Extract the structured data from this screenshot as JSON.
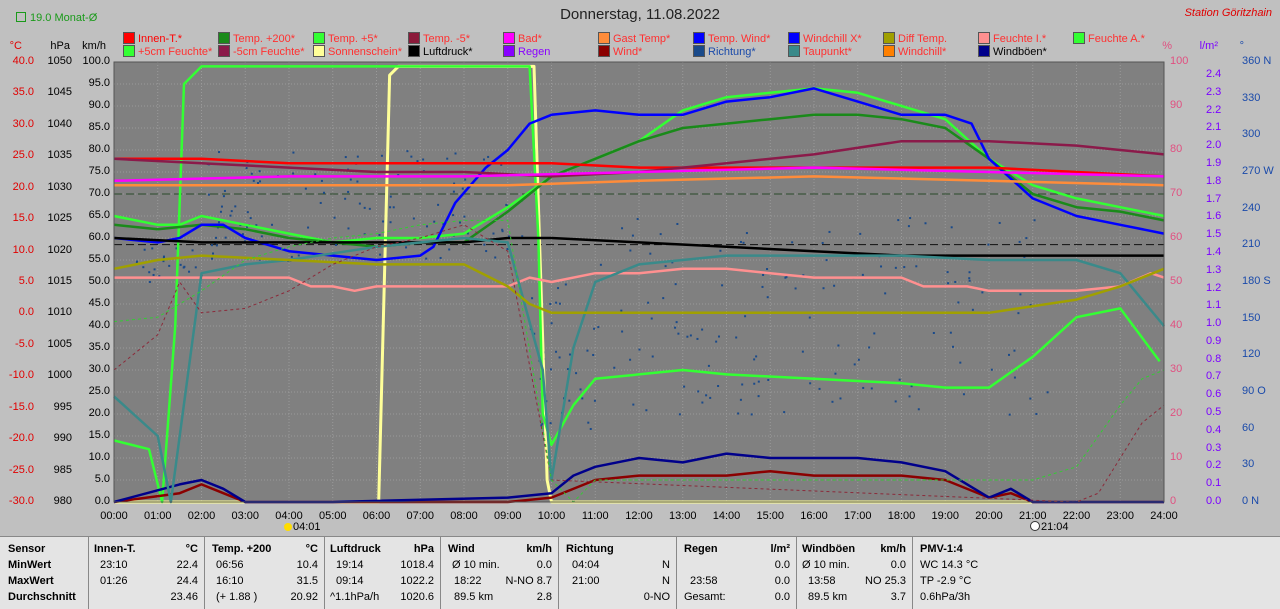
{
  "header": {
    "title": "Donnerstag, 11.08.2022",
    "station": "Station Göritzhain",
    "monat": "19.0 Monat-Ø"
  },
  "legend": [
    {
      "label": "Innen-T.*",
      "color": "#ff0000",
      "text_color": "#ff0000"
    },
    {
      "label": "Temp. +200*",
      "color": "#1a8a1a",
      "text_color": "#ff3030"
    },
    {
      "label": "Temp. +5*",
      "color": "#33ff33",
      "text_color": "#ff3030"
    },
    {
      "label": "Temp. -5*",
      "color": "#8b1a3a",
      "text_color": "#ff3030"
    },
    {
      "label": "Bad*",
      "color": "#ff00ff",
      "text_color": "#ff3030"
    },
    {
      "label": "Gast Temp*",
      "color": "#ff8c3a",
      "text_color": "#ff3030"
    },
    {
      "label": "Temp. Wind*",
      "color": "#0000ff",
      "text_color": "#ff3030"
    },
    {
      "label": "Windchill X*",
      "color": "#0000ff",
      "text_color": "#ff3030"
    },
    {
      "label": "Diff Temp.",
      "color": "#a0a000",
      "text_color": "#ff3030"
    },
    {
      "label": "Feuchte I.*",
      "color": "#ff9090",
      "text_color": "#ff3030"
    },
    {
      "label": "Feuchte A.*",
      "color": "#33ff33",
      "text_color": "#ff3030"
    },
    {
      "label": "+5cm Feuchte*",
      "color": "#33ff33",
      "text_color": "#ff3030"
    },
    {
      "label": "-5cm Feuchte*",
      "color": "#8b1a4a",
      "text_color": "#ff3030"
    },
    {
      "label": "Sonnenschein*",
      "color": "#ffff99",
      "text_color": "#ff3030"
    },
    {
      "label": "Luftdruck*",
      "color": "#000000",
      "text_color": "#000000"
    },
    {
      "label": "Regen",
      "color": "#8800ff",
      "text_color": "#8800ff"
    },
    {
      "label": "Wind*",
      "color": "#8b0000",
      "text_color": "#ff3030"
    },
    {
      "label": "Richtung*",
      "color": "#1a4a8a",
      "text_color": "#1a4aaa"
    },
    {
      "label": "Taupunkt*",
      "color": "#3a8a8a",
      "text_color": "#ff3030"
    },
    {
      "label": "Windchill*",
      "color": "#ff8000",
      "text_color": "#ff3030"
    },
    {
      "label": "Windböen*",
      "color": "#00008b",
      "text_color": "#000000"
    }
  ],
  "units": {
    "celsius": "°C",
    "hpa": "hPa",
    "kmh": "km/h",
    "percent": "%",
    "rain": "l/m²",
    "direction": "°"
  },
  "axes": {
    "temp": [
      "40.0",
      "35.0",
      "30.0",
      "25.0",
      "20.0",
      "15.0",
      "10.0",
      "5.0",
      "0.0",
      "-5.0",
      "-10.0",
      "-15.0",
      "-20.0",
      "-25.0",
      "-30.0"
    ],
    "hpa": [
      "1050",
      "1045",
      "1040",
      "1035",
      "1030",
      "1025",
      "1020",
      "1015",
      "1010",
      "1005",
      "1000",
      "995",
      "990",
      "985",
      "980"
    ],
    "kmh": [
      "100.0",
      "95.0",
      "90.0",
      "85.0",
      "80.0",
      "75.0",
      "70.0",
      "65.0",
      "60.0",
      "55.0",
      "50.0",
      "45.0",
      "40.0",
      "35.0",
      "30.0",
      "25.0",
      "20.0",
      "15.0",
      "10.0",
      "5.0",
      "0.0"
    ],
    "percent": [
      "100",
      "90",
      "80",
      "70",
      "60",
      "50",
      "40",
      "30",
      "20",
      "10",
      "0"
    ],
    "rain": [
      "2.4",
      "2.3",
      "2.2",
      "2.1",
      "2.0",
      "1.9",
      "1.8",
      "1.7",
      "1.6",
      "1.5",
      "1.4",
      "1.3",
      "1.2",
      "1.1",
      "1.0",
      "0.9",
      "0.8",
      "0.7",
      "0.6",
      "0.5",
      "0.4",
      "0.3",
      "0.2",
      "0.1",
      "0.0"
    ],
    "direction": [
      "360 N",
      "330",
      "300",
      "270 W",
      "240",
      "210",
      "180 S",
      "150",
      "120",
      "90 O",
      "60",
      "30",
      "0 N"
    ],
    "time": [
      "00:00",
      "01:00",
      "02:00",
      "03:00",
      "04:00",
      "05:00",
      "06:00",
      "07:00",
      "08:00",
      "09:00",
      "10:00",
      "11:00",
      "12:00",
      "13:00",
      "14:00",
      "15:00",
      "16:00",
      "17:00",
      "18:00",
      "19:00",
      "20:00",
      "21:00",
      "22:00",
      "23:00",
      "24:00"
    ]
  },
  "markers": {
    "sunrise": "04:01",
    "sunset": "21:04"
  },
  "chart_data": {
    "type": "line",
    "x_unit": "hour",
    "kmh_range": [
      0,
      100
    ],
    "series": [
      {
        "name": "Sonnenschein*",
        "color": "#ffff99",
        "axis": "kmh",
        "x": [
          0,
          6,
          6.05,
          6.3,
          6.5,
          9.6,
          9.9,
          10,
          24
        ],
        "y": [
          0,
          0,
          0,
          97,
          99,
          99,
          5,
          0,
          0
        ]
      },
      {
        "name": "+5cm Feuchte*",
        "color": "#33ff33",
        "axis": "kmh",
        "x": [
          0,
          0.8,
          1.1,
          1.4,
          1.6,
          2,
          9.5,
          9.7,
          9.8,
          10,
          10.5,
          11,
          13,
          14,
          16,
          18,
          19,
          20,
          21,
          22,
          23,
          23.9
        ],
        "y": [
          14,
          12,
          0,
          40,
          95,
          99,
          99,
          60,
          20,
          13,
          22,
          28,
          30,
          29,
          28,
          27,
          26,
          26,
          33,
          42,
          44,
          32
        ]
      },
      {
        "name": "Feuchte A.*",
        "color": "#33ff33",
        "axis": "kmh",
        "x": [
          0,
          1,
          1.5,
          2,
          3,
          4,
          5,
          6,
          7,
          8,
          9,
          10,
          11,
          12,
          13,
          14,
          15,
          16,
          17,
          18,
          19,
          20,
          21,
          22,
          23,
          24
        ],
        "y": [
          65,
          63,
          63,
          65,
          63,
          61,
          59,
          60,
          60,
          61,
          67,
          74,
          78,
          82,
          89,
          92,
          93,
          94,
          93,
          90,
          87,
          78,
          72,
          69,
          67,
          65
        ]
      },
      {
        "name": "Temp. +200*",
        "color": "#1a8a1a",
        "axis": "kmh",
        "x": [
          0,
          1,
          2,
          3,
          4,
          5,
          6,
          7,
          8,
          9,
          10,
          11,
          12,
          13,
          14,
          15,
          16,
          17,
          18,
          19,
          20,
          21,
          22,
          23,
          24
        ],
        "y": [
          63,
          62,
          63,
          62,
          60,
          59,
          58,
          59,
          59,
          66,
          74,
          78,
          82,
          85,
          86,
          87,
          88,
          88,
          87,
          85,
          78,
          70,
          67,
          66,
          64
        ]
      },
      {
        "name": "Temp. Wind*",
        "color": "#0000ff",
        "axis": "kmh",
        "x": [
          0,
          1,
          1.5,
          2,
          2.5,
          3,
          4,
          5,
          6,
          7,
          7.3,
          7.8,
          8.5,
          9,
          9.5,
          10,
          11,
          12,
          13,
          14,
          15,
          16,
          17,
          18,
          19,
          19.6,
          20,
          21,
          22,
          23,
          24
        ],
        "y": [
          60,
          59,
          60,
          63,
          63,
          60,
          57,
          56,
          55,
          56,
          58,
          68,
          76,
          80,
          86,
          88,
          89,
          88,
          88,
          91,
          92,
          94,
          91,
          88,
          88,
          86,
          78,
          69,
          65,
          63,
          61
        ]
      },
      {
        "name": "Innen-T.*",
        "color": "#ff0000",
        "axis": "kmh",
        "x": [
          0,
          2,
          4,
          6,
          8,
          10,
          12,
          14,
          16,
          18,
          20,
          22,
          24
        ],
        "y": [
          78,
          78,
          77,
          77,
          77,
          77,
          76,
          76,
          76,
          76,
          76,
          75,
          74
        ]
      },
      {
        "name": "-5cm Feuchte*",
        "color": "#8b1a4a",
        "axis": "kmh",
        "x": [
          0,
          2,
          4,
          6,
          8,
          10,
          12,
          14,
          16,
          18,
          20,
          22,
          24
        ],
        "y": [
          78,
          77,
          76,
          75,
          75,
          74,
          75,
          77,
          79,
          82,
          82,
          81,
          79
        ]
      },
      {
        "name": "Bad*",
        "color": "#ff00ff",
        "axis": "kmh",
        "x": [
          0,
          4,
          8,
          12,
          16,
          20,
          24
        ],
        "y": [
          73,
          74,
          74,
          75,
          76,
          75,
          74
        ]
      },
      {
        "name": "Gast Temp*",
        "color": "#ff8c3a",
        "axis": "kmh",
        "x": [
          0,
          6,
          9,
          12,
          16,
          20,
          24
        ],
        "y": [
          72,
          72,
          72,
          73,
          74,
          73,
          72
        ]
      },
      {
        "name": "Luftdruck*",
        "color": "#000000",
        "axis": "kmh",
        "x": [
          0,
          2,
          4,
          6,
          8,
          9,
          10,
          12,
          14,
          16,
          18,
          20,
          22,
          24
        ],
        "y": [
          60,
          59,
          59,
          59,
          59,
          60,
          60,
          59,
          58,
          57,
          56,
          56,
          56,
          56
        ]
      },
      {
        "name": "Feuchte I.*",
        "color": "#ff9090",
        "axis": "kmh",
        "x": [
          0,
          4,
          4.5,
          5,
          5.5,
          6,
          9,
          9.5,
          10,
          11,
          12,
          13,
          14,
          15,
          16,
          17,
          18,
          18.5,
          19,
          19.5,
          20,
          21,
          22,
          23,
          23.7,
          24
        ],
        "y": [
          51,
          51,
          49,
          49,
          48,
          49,
          49,
          51,
          50,
          52,
          52,
          53,
          53,
          52,
          51,
          51,
          51,
          49,
          49,
          49,
          48,
          48,
          48,
          49,
          52,
          51
        ]
      },
      {
        "name": "Wind*",
        "color": "#8b0000",
        "axis": "kmh",
        "x": [
          0,
          1.5,
          2,
          2.5,
          3,
          4,
          5,
          9,
          10,
          11,
          12,
          13,
          14,
          15,
          16,
          17,
          18,
          19,
          20,
          20.5,
          21,
          22,
          24
        ],
        "y": [
          0,
          2,
          4,
          2,
          0,
          0,
          0,
          0,
          1,
          5,
          6,
          6,
          6,
          7,
          6,
          6,
          6,
          5,
          1,
          2,
          0,
          0,
          0
        ]
      },
      {
        "name": "Windböen*",
        "color": "#00008b",
        "axis": "kmh",
        "x": [
          0,
          1.5,
          2,
          2.5,
          3,
          4,
          5,
          9,
          10,
          10.5,
          11,
          12,
          13,
          14,
          15,
          16,
          17,
          18,
          19,
          20,
          20.5,
          21,
          22,
          24
        ],
        "y": [
          0,
          4,
          5,
          3,
          0,
          0,
          0,
          1,
          2,
          6,
          8,
          10,
          9,
          11,
          10,
          10,
          10,
          9,
          7,
          1,
          3,
          0,
          0,
          0
        ]
      },
      {
        "name": "Taupunkt*",
        "color": "#3a8a8a",
        "axis": "kmh",
        "x": [
          0,
          1,
          1.3,
          2,
          3,
          4,
          6,
          8,
          9,
          9.8,
          10,
          10.5,
          11,
          12,
          14,
          16,
          18,
          20,
          22,
          23,
          24
        ],
        "y": [
          24,
          15,
          0,
          52,
          54,
          55,
          58,
          60,
          59,
          30,
          5,
          35,
          50,
          54,
          56,
          56,
          56,
          55,
          55,
          52,
          40
        ]
      },
      {
        "name": "Diff Temp.",
        "color": "#a0a000",
        "axis": "kmh",
        "x": [
          0,
          1,
          2,
          4,
          6,
          8,
          9,
          9.5,
          10,
          12,
          14,
          16,
          18,
          20,
          22,
          23,
          24
        ],
        "y": [
          53,
          55,
          56,
          55,
          54,
          54,
          49,
          45,
          43,
          43,
          43,
          43,
          43,
          43,
          46,
          49,
          53
        ]
      },
      {
        "name": "Windchill*",
        "color": "#8b2a3a",
        "axis": "kmh",
        "dash": "3,3",
        "x": [
          0,
          1,
          1.5,
          2,
          3,
          4,
          5,
          6,
          7,
          8,
          9,
          10,
          22,
          22.5,
          23,
          23.5,
          24
        ],
        "y": [
          30,
          38,
          50,
          43,
          44,
          48,
          54,
          58,
          60,
          63,
          57,
          5,
          0,
          2,
          10,
          18,
          22
        ]
      },
      {
        "name": "Windchill X*",
        "color": "#33cc33",
        "axis": "kmh",
        "dash": "3,3",
        "x": [
          0,
          1,
          2,
          3,
          4,
          5,
          6,
          7,
          8,
          9,
          10,
          10.5,
          11,
          21,
          22,
          22.5,
          23,
          23.5,
          24
        ],
        "y": [
          41,
          42,
          48,
          55,
          58,
          60,
          61,
          63,
          64,
          64,
          5,
          0,
          5,
          5,
          8,
          15,
          22,
          28,
          30
        ]
      }
    ],
    "scatter": {
      "name": "Richtung*",
      "color": "#1a4a8a",
      "axis": "kmh"
    }
  },
  "table": {
    "sensor": {
      "h": "Sensor",
      "r1": "MinWert",
      "r2": "MaxWert",
      "r3": "Durchschnitt"
    },
    "innen": {
      "h": "Innen-T.",
      "u": "°C",
      "r1a": "23:10",
      "r1b": "22.4",
      "r2a": "01:26",
      "r2b": "24.4",
      "r3b": "23.46"
    },
    "temp": {
      "h": "Temp. +200",
      "u": "°C",
      "r1a": "06:56",
      "r1b": "10.4",
      "r2a": "16:10",
      "r2b": "31.5",
      "r3a": "(+ 1.88 )",
      "r3b": "20.92"
    },
    "luft": {
      "h": "Luftdruck",
      "u": "hPa",
      "r1a": "19:14",
      "r1b": "1018.4",
      "r2a": "09:14",
      "r2b": "1022.2",
      "r3a": "^1.1hPa/h",
      "r3b": "1020.6"
    },
    "wind": {
      "h": "Wind",
      "u": "km/h",
      "r1a": "Ø 10 min.",
      "r1b": "0.0",
      "r2a": "18:22",
      "r2b": "N-NO 8.7",
      "r3a": "89.5 km",
      "r3b": "2.8"
    },
    "richt": {
      "h": "Richtung",
      "r1a": "04:04",
      "r1b": "N",
      "r2a": "21:00",
      "r2b": "N",
      "r3b": "0-NO"
    },
    "regen": {
      "h": "Regen",
      "u": "l/m²",
      "r1b": "0.0",
      "r2a": "23:58",
      "r2b": "0.0",
      "r3a": "Gesamt:",
      "r3b": "0.0"
    },
    "boen": {
      "h": "Windböen",
      "u": "km/h",
      "r1a": "Ø 10 min.",
      "r1b": "0.0",
      "r2a": "13:58",
      "r2b": "NO 25.3",
      "r3a": "89.5 km",
      "r3b": "3.7"
    },
    "pmv": {
      "h": "PMV-1:4",
      "r1": "WC 14.3 °C",
      "r2": "TP -2.9 °C",
      "r3": "0.6hPa/3h"
    }
  }
}
